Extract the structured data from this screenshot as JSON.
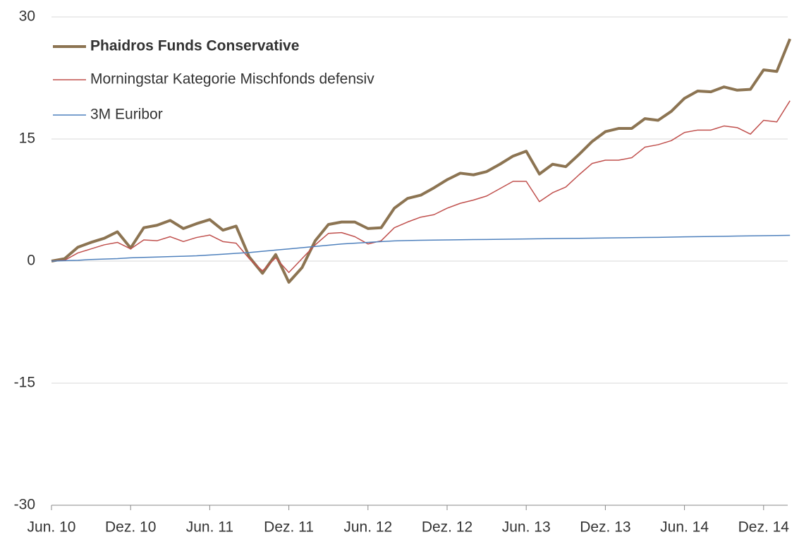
{
  "chart_data": {
    "type": "line",
    "categories": [
      "Jun. 10",
      null,
      null,
      null,
      null,
      null,
      "Dez. 10",
      null,
      null,
      null,
      null,
      null,
      "Jun. 11",
      null,
      null,
      null,
      null,
      null,
      "Dez. 11",
      null,
      null,
      null,
      null,
      null,
      "Jun. 12",
      null,
      null,
      null,
      null,
      null,
      "Dez. 12",
      null,
      null,
      null,
      null,
      null,
      "Jun. 13",
      null,
      null,
      null,
      null,
      null,
      "Dez. 13",
      null,
      null,
      null,
      null,
      null,
      "Jun. 14",
      null,
      null,
      null,
      null,
      null,
      "Dez. 14",
      null,
      null
    ],
    "series": [
      {
        "name": "Phaidros Funds Conservative",
        "color": "#8c7452",
        "values": [
          0,
          0.3,
          1.7,
          2.3,
          2.8,
          3.6,
          1.6,
          4.1,
          4.4,
          5.0,
          4.0,
          4.6,
          5.1,
          3.8,
          4.3,
          0.5,
          -1.5,
          0.8,
          -2.6,
          -0.8,
          2.5,
          4.5,
          4.8,
          4.8,
          4.0,
          4.1,
          6.5,
          7.7,
          8.1,
          9.0,
          10.0,
          10.8,
          10.6,
          11.0,
          11.9,
          12.9,
          13.5,
          10.7,
          11.9,
          11.6,
          13.1,
          14.7,
          15.9,
          16.3,
          16.3,
          17.5,
          17.3,
          18.4,
          20.0,
          20.9,
          20.8,
          21.4,
          21.0,
          21.1,
          23.5,
          23.3,
          27.3
        ]
      },
      {
        "name": "Morningstar Kategorie Mischfonds defensiv",
        "color": "#c0504d",
        "values": [
          0,
          0.1,
          1.0,
          1.5,
          2.0,
          2.3,
          1.5,
          2.6,
          2.5,
          3.0,
          2.4,
          2.9,
          3.2,
          2.4,
          2.2,
          0.3,
          -1.2,
          0.4,
          -1.4,
          0.3,
          2.0,
          3.4,
          3.5,
          3.0,
          2.1,
          2.5,
          4.1,
          4.8,
          5.4,
          5.7,
          6.5,
          7.1,
          7.5,
          8.0,
          8.9,
          9.8,
          9.8,
          7.3,
          8.4,
          9.1,
          10.6,
          12.0,
          12.4,
          12.4,
          12.7,
          14.0,
          14.3,
          14.8,
          15.8,
          16.1,
          16.1,
          16.6,
          16.4,
          15.6,
          17.3,
          17.1,
          19.7
        ]
      },
      {
        "name": "3M Euribor",
        "color": "#4f81bd",
        "values": [
          0,
          0.05,
          0.1,
          0.2,
          0.25,
          0.3,
          0.4,
          0.45,
          0.5,
          0.55,
          0.6,
          0.65,
          0.75,
          0.85,
          0.95,
          1.05,
          1.2,
          1.35,
          1.5,
          1.65,
          1.8,
          1.95,
          2.1,
          2.2,
          2.3,
          2.4,
          2.48,
          2.52,
          2.56,
          2.58,
          2.6,
          2.62,
          2.64,
          2.66,
          2.68,
          2.7,
          2.72,
          2.74,
          2.76,
          2.78,
          2.8,
          2.82,
          2.84,
          2.86,
          2.88,
          2.9,
          2.92,
          2.95,
          2.98,
          3.0,
          3.02,
          3.05,
          3.08,
          3.1,
          3.12,
          3.14,
          3.16
        ]
      }
    ],
    "ylim": [
      -30,
      30
    ],
    "yticks": [
      -30,
      -15,
      0,
      15,
      30
    ],
    "grid": true,
    "legend": "top-left"
  }
}
